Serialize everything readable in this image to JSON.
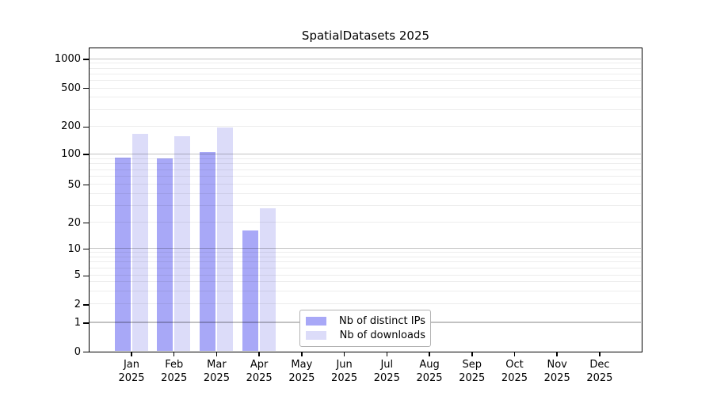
{
  "chart_data": {
    "type": "bar",
    "title": "SpatialDatasets 2025",
    "categories": [
      "Jan 2025",
      "Feb 2025",
      "Mar 2025",
      "Apr 2025",
      "May 2025",
      "Jun 2025",
      "Jul 2025",
      "Aug 2025",
      "Sep 2025",
      "Oct 2025",
      "Nov 2025",
      "Dec 2025"
    ],
    "series": [
      {
        "name": "Nb of distinct IPs",
        "color": "#a8a8f7",
        "values": [
          91,
          90,
          104,
          16,
          0,
          0,
          0,
          0,
          0,
          0,
          0,
          0
        ]
      },
      {
        "name": "Nb of downloads",
        "color": "#dcdcf9",
        "values": [
          164,
          157,
          193,
          28,
          0,
          0,
          0,
          0,
          0,
          0,
          0,
          0
        ]
      }
    ],
    "xlabel": "",
    "ylabel": "",
    "yscale": "symlog",
    "yticks": [
      0,
      1,
      2,
      5,
      10,
      20,
      50,
      100,
      200,
      500,
      1000
    ],
    "ylim": [
      0,
      1290
    ],
    "grid": "horizontal, major solid + minor faint",
    "legend_position": "lower center"
  }
}
